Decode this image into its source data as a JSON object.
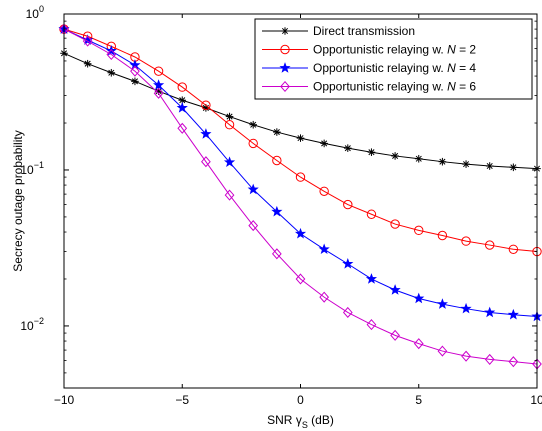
{
  "chart_data": {
    "type": "line",
    "title": "",
    "xlabel": {
      "prefix": "SNR ",
      "symbol": "γ",
      "subscript": "S",
      "suffix": " (dB)"
    },
    "ylabel": "Secrecy outage probability",
    "xlim": [
      -10,
      10
    ],
    "ylim": [
      0.004,
      1
    ],
    "yscale": "log",
    "grid": false,
    "legend_position": "top-right",
    "x_ticks": [
      "-10",
      "-5",
      "0",
      "5",
      "10"
    ],
    "y_ticks": [
      {
        "base": "10",
        "exp": "0"
      },
      {
        "base": "10",
        "exp": "-1"
      },
      {
        "base": "10",
        "exp": "-2"
      }
    ],
    "x": [
      -10,
      -9,
      -8,
      -7,
      -6,
      -5,
      -4,
      -3,
      -2,
      -1,
      0,
      1,
      2,
      3,
      4,
      5,
      6,
      7,
      8,
      9,
      10
    ],
    "series": [
      {
        "name": "Direct transmission",
        "color": "#000000",
        "marker": "asterisk",
        "values": [
          0.56,
          0.48,
          0.42,
          0.37,
          0.32,
          0.28,
          0.25,
          0.22,
          0.195,
          0.175,
          0.16,
          0.148,
          0.138,
          0.13,
          0.123,
          0.118,
          0.113,
          0.109,
          0.106,
          0.104,
          0.102
        ]
      },
      {
        "name": "Opportunistic relaying w. N = 2",
        "label_parts": {
          "text": "Opportunistic relaying w. ",
          "var": "N",
          "rest": " = 2"
        },
        "color": "#ff0000",
        "marker": "circle",
        "values": [
          0.8,
          0.72,
          0.62,
          0.53,
          0.43,
          0.34,
          0.26,
          0.195,
          0.148,
          0.115,
          0.09,
          0.073,
          0.06,
          0.052,
          0.045,
          0.041,
          0.038,
          0.035,
          0.033,
          0.031,
          0.03
        ]
      },
      {
        "name": "Opportunistic relaying w. N = 4",
        "label_parts": {
          "text": "Opportunistic relaying w. ",
          "var": "N",
          "rest": " = 4"
        },
        "color": "#0000ff",
        "marker": "star",
        "values": [
          0.8,
          0.68,
          0.58,
          0.47,
          0.35,
          0.25,
          0.17,
          0.112,
          0.075,
          0.054,
          0.039,
          0.031,
          0.025,
          0.02,
          0.017,
          0.015,
          0.0138,
          0.0129,
          0.0122,
          0.0118,
          0.0115
        ]
      },
      {
        "name": "Opportunistic relaying w. N = 6",
        "label_parts": {
          "text": "Opportunistic relaying w. ",
          "var": "N",
          "rest": " = 6"
        },
        "color": "#cc00cc",
        "marker": "diamond",
        "values": [
          0.8,
          0.67,
          0.55,
          0.43,
          0.31,
          0.185,
          0.113,
          0.069,
          0.044,
          0.029,
          0.02,
          0.0153,
          0.0122,
          0.0102,
          0.0087,
          0.0077,
          0.0069,
          0.0064,
          0.0061,
          0.0059,
          0.0057
        ]
      }
    ]
  }
}
